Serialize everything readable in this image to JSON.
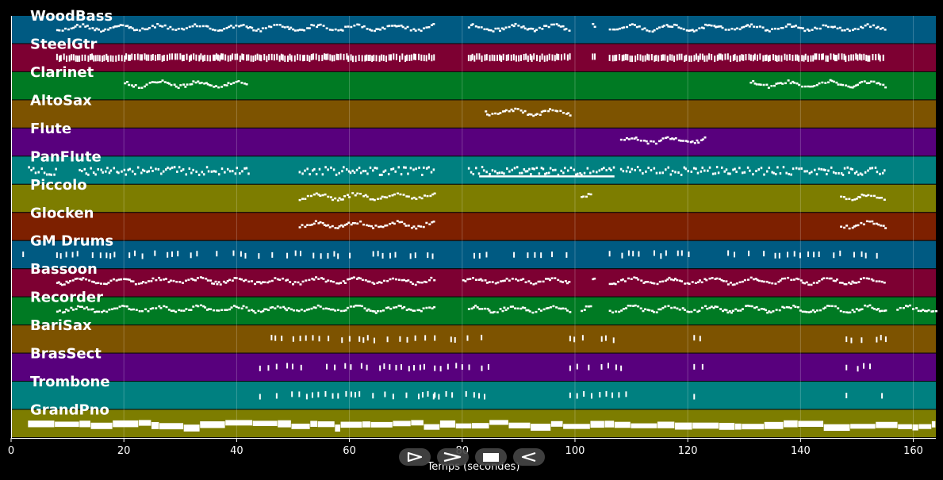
{
  "chart_data": {
    "type": "piano-roll",
    "xlabel": "Temps (secondes)",
    "xlim": [
      0,
      164
    ],
    "xticks": [
      0,
      20,
      40,
      60,
      80,
      100,
      120,
      140,
      160
    ],
    "tracks": [
      {
        "name": "WoodBass",
        "color": "#005a82",
        "active": [
          [
            8,
            75
          ],
          [
            81,
            99
          ],
          [
            103,
            103.5
          ],
          [
            106,
            155
          ]
        ],
        "style": "dots"
      },
      {
        "name": "SteelGtr",
        "color": "#7d0032",
        "active": [
          [
            8,
            75
          ],
          [
            81,
            99
          ],
          [
            103,
            103.5
          ],
          [
            106,
            155
          ]
        ],
        "style": "bars"
      },
      {
        "name": "Clarinet",
        "color": "#007a23",
        "active": [
          [
            20,
            42
          ],
          [
            131,
            155
          ]
        ],
        "style": "dots"
      },
      {
        "name": "AltoSax",
        "color": "#7d5300",
        "active": [
          [
            84,
            99
          ]
        ],
        "style": "dots"
      },
      {
        "name": "Flute",
        "color": "#58007d",
        "active": [
          [
            108,
            123
          ]
        ],
        "style": "dots"
      },
      {
        "name": "PanFlute",
        "color": "#008080",
        "active": [
          [
            3,
            8
          ],
          [
            12,
            42
          ],
          [
            51,
            75
          ],
          [
            81,
            107
          ],
          [
            108,
            155
          ]
        ],
        "style": "mixed"
      },
      {
        "name": "Piccolo",
        "color": "#7d7d00",
        "active": [
          [
            51,
            75
          ],
          [
            101,
            103
          ],
          [
            147,
            155
          ]
        ],
        "style": "dots"
      },
      {
        "name": "Glocken",
        "color": "#7d2000",
        "active": [
          [
            51,
            75
          ],
          [
            147,
            155
          ]
        ],
        "style": "dots"
      },
      {
        "name": "GM Drums",
        "color": "#005a82",
        "active": [
          [
            2,
            3
          ],
          [
            8,
            75
          ],
          [
            82,
            99
          ],
          [
            106,
            155
          ]
        ],
        "style": "ticks"
      },
      {
        "name": "Bassoon",
        "color": "#7d0032",
        "active": [
          [
            8,
            75
          ],
          [
            80,
            99
          ],
          [
            103,
            103.5
          ],
          [
            106,
            155
          ]
        ],
        "style": "dots"
      },
      {
        "name": "Recorder",
        "color": "#007a23",
        "active": [
          [
            8,
            75
          ],
          [
            81,
            99
          ],
          [
            101,
            103
          ],
          [
            106,
            155
          ],
          [
            157,
            164
          ]
        ],
        "style": "dots"
      },
      {
        "name": "BariSax",
        "color": "#7d5300",
        "active": [
          [
            44,
            75
          ],
          [
            75,
            85
          ],
          [
            99,
            109
          ],
          [
            121,
            123
          ],
          [
            148,
            155
          ]
        ],
        "style": "ticks"
      },
      {
        "name": "BrasSect",
        "color": "#58007d",
        "active": [
          [
            44,
            75
          ],
          [
            75,
            85
          ],
          [
            99,
            109
          ],
          [
            121,
            123
          ],
          [
            148,
            155
          ]
        ],
        "style": "ticks"
      },
      {
        "name": "Trombone",
        "color": "#008080",
        "active": [
          [
            44,
            75
          ],
          [
            75,
            85
          ],
          [
            99,
            109
          ],
          [
            121,
            123
          ],
          [
            148,
            155
          ]
        ],
        "style": "ticks"
      },
      {
        "name": "GrandPno",
        "color": "#7d7d00",
        "active": [
          [
            3,
            164
          ]
        ],
        "style": "blocks"
      }
    ]
  },
  "controls": [
    {
      "name": "play-icon"
    },
    {
      "name": "fast-forward-icon"
    },
    {
      "name": "stop-icon"
    },
    {
      "name": "rewind-icon"
    }
  ]
}
